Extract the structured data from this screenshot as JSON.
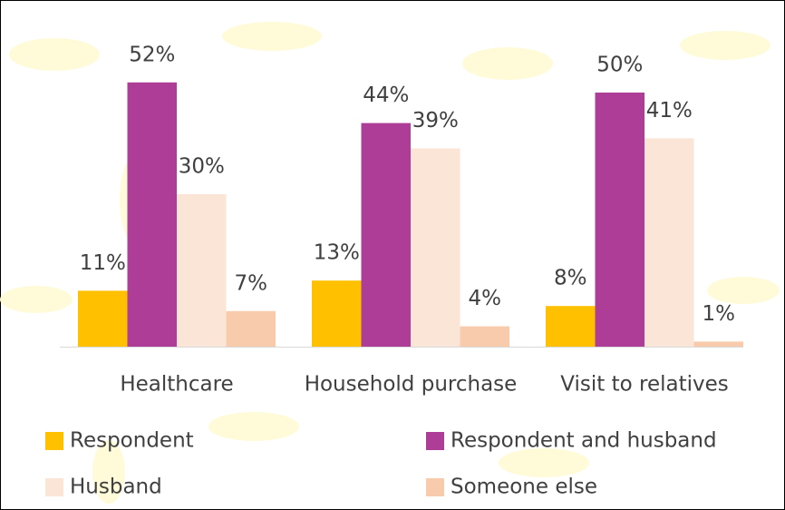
{
  "chart_data": {
    "type": "bar",
    "categories": [
      "Healthcare",
      "Household purchase",
      "Visit to relatives"
    ],
    "series": [
      {
        "name": "Respondent",
        "color": "#FFC000",
        "values": [
          11,
          13,
          8
        ],
        "value_labels": [
          "11%",
          "13%",
          "8%"
        ]
      },
      {
        "name": "Respondent and husband",
        "color": "#AE3D97",
        "values": [
          52,
          44,
          50
        ],
        "value_labels": [
          "52%",
          "44%",
          "50%"
        ]
      },
      {
        "name": "Husband",
        "color": "#FBE5D6",
        "values": [
          30,
          39,
          41
        ],
        "value_labels": [
          "30%",
          "39%",
          "41%"
        ]
      },
      {
        "name": "Someone else",
        "color": "#F8CBAD",
        "values": [
          7,
          4,
          1
        ],
        "value_labels": [
          "7%",
          "4%",
          "1%"
        ]
      }
    ]
  }
}
